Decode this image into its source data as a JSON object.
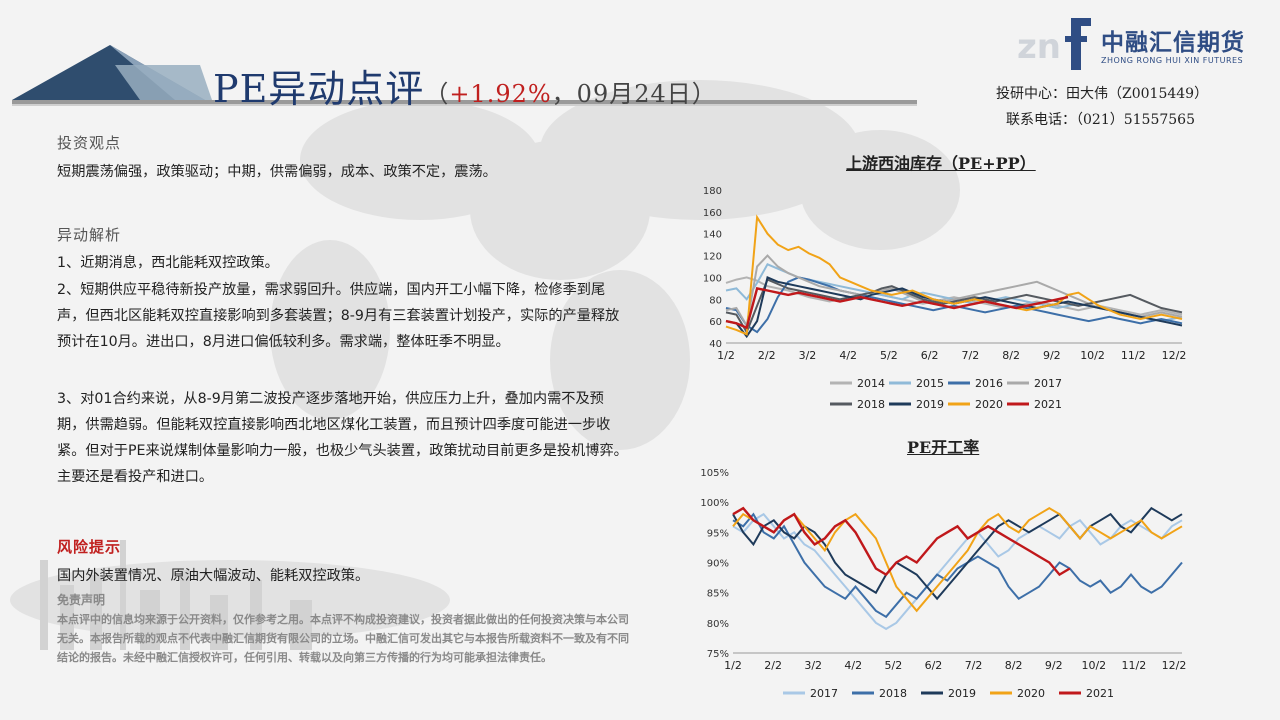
{
  "header": {
    "title_main": "PE异动点评",
    "title_open": "（",
    "title_change": "+1.92%",
    "title_date": "，09月24日）"
  },
  "logo": {
    "name_cn": "中融汇信期货",
    "name_en": "ZHONG RONG HUI XIN FUTURES",
    "mark": "f"
  },
  "contact": {
    "line1": "投研中心：田大伟（Z0015449）",
    "line2": "联系电话：（021）51557565"
  },
  "sections": {
    "view_heading": "投资观点",
    "view_text": "短期震荡偏强，政策驱动；中期，供需偏弱，成本、政策不定，震荡。",
    "analysis_heading": "异动解析",
    "analysis_items": [
      "1、近期消息，西北能耗双控政策。",
      "2、短期供应平稳待新投产放量，需求弱回升。供应端，国内开工小幅下降，检修季到尾声，但西北区能耗双控直接影响到多套装置；8-9月有三套装置计划投产，实际的产量释放预计在10月。进出口，8月进口偏低较利多。需求端，整体旺季不明显。",
      "3、对01合约来说，从8-9月第二波投产逐步落地开始，供应压力上升，叠加内需不及预期，供需趋弱。但能耗双控直接影响西北地区煤化工装置，而且预计四季度可能进一步收紧。但对于PE来说煤制体量影响力一般，也极少气头装置，政策扰动目前更多是投机博弈。主要还是看投产和进口。"
    ],
    "risk_heading": "风险提示",
    "risk_text": "国内外装置情况、原油大幅波动、能耗双控政策。",
    "disclaimer_heading": "免责声明",
    "disclaimer_text": "本点评中的信息均来源于公开资料，仅作参考之用。本点评不构成投资建议，投资者据此做出的任何投资决策与本公司无关。本报告所载的观点不代表中融汇信期货有限公司的立场。中融汇信可发出其它与本报告所载资料不一致及有不同结论的报告。未经中融汇信授权许可，任何引用、转载以及向第三方传播的行为均可能承担法律责任。"
  },
  "chart_data": [
    {
      "type": "line",
      "title": "上游西油库存（PE+PP）",
      "x_ticks": [
        "1/2",
        "2/2",
        "3/2",
        "4/2",
        "5/2",
        "6/2",
        "7/2",
        "8/2",
        "9/2",
        "10/2",
        "11/2",
        "12/2"
      ],
      "ylim": [
        40,
        180
      ],
      "y_ticks": [
        40,
        60,
        80,
        100,
        120,
        140,
        160,
        180
      ],
      "legend_position": "bottom",
      "series": [
        {
          "name": "2014",
          "color": "#b3b3b3",
          "values": [
            95,
            98,
            100,
            97,
            92,
            90,
            88,
            85,
            82,
            80,
            78,
            80,
            82,
            84,
            86,
            84,
            82,
            80,
            78,
            76,
            78,
            80,
            82,
            80,
            78,
            76,
            74,
            72,
            74,
            76,
            78,
            76,
            74,
            72,
            70,
            72,
            74,
            72,
            70,
            68,
            66,
            68,
            70,
            68,
            66
          ]
        },
        {
          "name": "2015",
          "color": "#8fbad8",
          "values": [
            88,
            90,
            80,
            95,
            112,
            108,
            104,
            100,
            98,
            96,
            94,
            92,
            90,
            88,
            86,
            84,
            82,
            80,
            84,
            86,
            84,
            82,
            80,
            78,
            76,
            78,
            80,
            82,
            80,
            78,
            76,
            74,
            72,
            74,
            76,
            74,
            72,
            70,
            68,
            66,
            64,
            62,
            60,
            62,
            64
          ]
        },
        {
          "name": "2016",
          "color": "#3d6fa8",
          "values": [
            72,
            70,
            56,
            50,
            62,
            82,
            96,
            100,
            98,
            95,
            92,
            88,
            86,
            84,
            82,
            80,
            78,
            76,
            74,
            72,
            70,
            72,
            74,
            72,
            70,
            68,
            70,
            72,
            74,
            72,
            70,
            68,
            66,
            64,
            62,
            60,
            62,
            64,
            62,
            60,
            58,
            60,
            62,
            60,
            58
          ]
        },
        {
          "name": "2017",
          "color": "#a9a9a9",
          "values": [
            70,
            72,
            56,
            110,
            120,
            110,
            104,
            100,
            96,
            92,
            90,
            88,
            86,
            84,
            86,
            88,
            90,
            86,
            82,
            78,
            76,
            78,
            80,
            82,
            84,
            86,
            88,
            90,
            92,
            94,
            96,
            92,
            88,
            84,
            80,
            76,
            72,
            70,
            68,
            66,
            64,
            66,
            68,
            66,
            64
          ]
        },
        {
          "name": "2018",
          "color": "#555a60",
          "values": [
            68,
            66,
            50,
            74,
            98,
            94,
            90,
            88,
            86,
            84,
            82,
            80,
            82,
            84,
            86,
            90,
            92,
            88,
            84,
            80,
            78,
            76,
            78,
            80,
            82,
            80,
            78,
            80,
            82,
            84,
            82,
            80,
            78,
            76,
            74,
            76,
            78,
            80,
            82,
            84,
            80,
            76,
            72,
            70,
            68
          ]
        },
        {
          "name": "2019",
          "color": "#1e3a5a",
          "values": [
            60,
            58,
            46,
            60,
            100,
            96,
            94,
            92,
            90,
            88,
            86,
            84,
            82,
            80,
            84,
            86,
            88,
            90,
            86,
            82,
            80,
            78,
            76,
            78,
            80,
            82,
            80,
            78,
            76,
            74,
            72,
            74,
            76,
            78,
            76,
            74,
            72,
            70,
            68,
            66,
            64,
            62,
            60,
            58,
            56
          ]
        },
        {
          "name": "2020",
          "color": "#f1a317",
          "values": [
            55,
            52,
            48,
            155,
            140,
            130,
            125,
            128,
            122,
            118,
            112,
            100,
            96,
            92,
            88,
            86,
            84,
            86,
            88,
            84,
            80,
            78,
            76,
            78,
            80,
            78,
            76,
            74,
            72,
            70,
            72,
            74,
            76,
            84,
            86,
            80,
            74,
            70,
            66,
            64,
            62,
            64,
            66,
            64,
            62
          ]
        },
        {
          "name": "2021",
          "color": "#c0181b",
          "values": [
            60,
            58,
            54,
            90,
            88,
            86,
            84,
            86,
            84,
            82,
            80,
            78,
            80,
            82,
            80,
            78,
            76,
            74,
            76,
            78,
            76,
            74,
            72,
            74,
            76,
            78,
            76,
            74,
            72,
            74,
            76,
            78,
            80,
            82
          ]
        }
      ]
    },
    {
      "type": "line",
      "title": "PE开工率",
      "x_ticks": [
        "1/2",
        "2/2",
        "3/2",
        "4/2",
        "5/2",
        "6/2",
        "7/2",
        "8/2",
        "9/2",
        "10/2",
        "11/2",
        "12/2"
      ],
      "ylim": [
        75,
        105
      ],
      "y_ticks": [
        "75%",
        "80%",
        "85%",
        "90%",
        "95%",
        "100%",
        "105%"
      ],
      "legend_position": "bottom",
      "series": [
        {
          "name": "2017",
          "color": "#a9c8e6",
          "values": [
            96,
            95,
            97,
            98,
            96,
            94,
            95,
            93,
            92,
            90,
            88,
            86,
            84,
            82,
            80,
            79,
            80,
            82,
            84,
            86,
            88,
            90,
            92,
            94,
            95,
            93,
            91,
            92,
            94,
            95,
            96,
            95,
            94,
            96,
            97,
            95,
            93,
            94,
            96,
            97,
            96,
            95,
            94,
            96,
            97
          ]
        },
        {
          "name": "2018",
          "color": "#3d6fa8",
          "values": [
            97,
            96,
            98,
            95,
            94,
            96,
            93,
            90,
            88,
            86,
            85,
            84,
            86,
            84,
            82,
            81,
            83,
            85,
            84,
            86,
            88,
            87,
            89,
            90,
            91,
            90,
            89,
            86,
            84,
            85,
            86,
            88,
            90,
            89,
            87,
            86,
            87,
            85,
            86,
            88,
            86,
            85,
            86,
            88,
            90
          ]
        },
        {
          "name": "2019",
          "color": "#1e3a5a",
          "values": [
            98,
            95,
            93,
            96,
            97,
            95,
            94,
            96,
            95,
            93,
            90,
            88,
            87,
            86,
            85,
            88,
            90,
            89,
            88,
            86,
            84,
            86,
            88,
            90,
            92,
            94,
            96,
            97,
            96,
            95,
            96,
            97,
            98,
            96,
            94,
            96,
            97,
            98,
            96,
            95,
            97,
            99,
            98,
            97,
            98
          ]
        },
        {
          "name": "2020",
          "color": "#f1a317",
          "values": [
            96,
            98,
            97,
            96,
            95,
            97,
            98,
            96,
            94,
            92,
            95,
            97,
            98,
            96,
            94,
            90,
            86,
            84,
            82,
            84,
            86,
            88,
            90,
            92,
            95,
            97,
            98,
            96,
            95,
            97,
            98,
            99,
            98,
            96,
            94,
            96,
            95,
            94,
            95,
            96,
            97,
            95,
            94,
            95,
            96
          ]
        },
        {
          "name": "2021",
          "color": "#c0181b",
          "values": [
            98,
            99,
            97,
            96,
            95,
            97,
            98,
            95,
            93,
            94,
            96,
            97,
            95,
            92,
            89,
            88,
            90,
            91,
            90,
            92,
            94,
            95,
            96,
            94,
            95,
            96,
            95,
            94,
            93,
            92,
            91,
            90,
            88,
            89
          ]
        }
      ]
    }
  ]
}
